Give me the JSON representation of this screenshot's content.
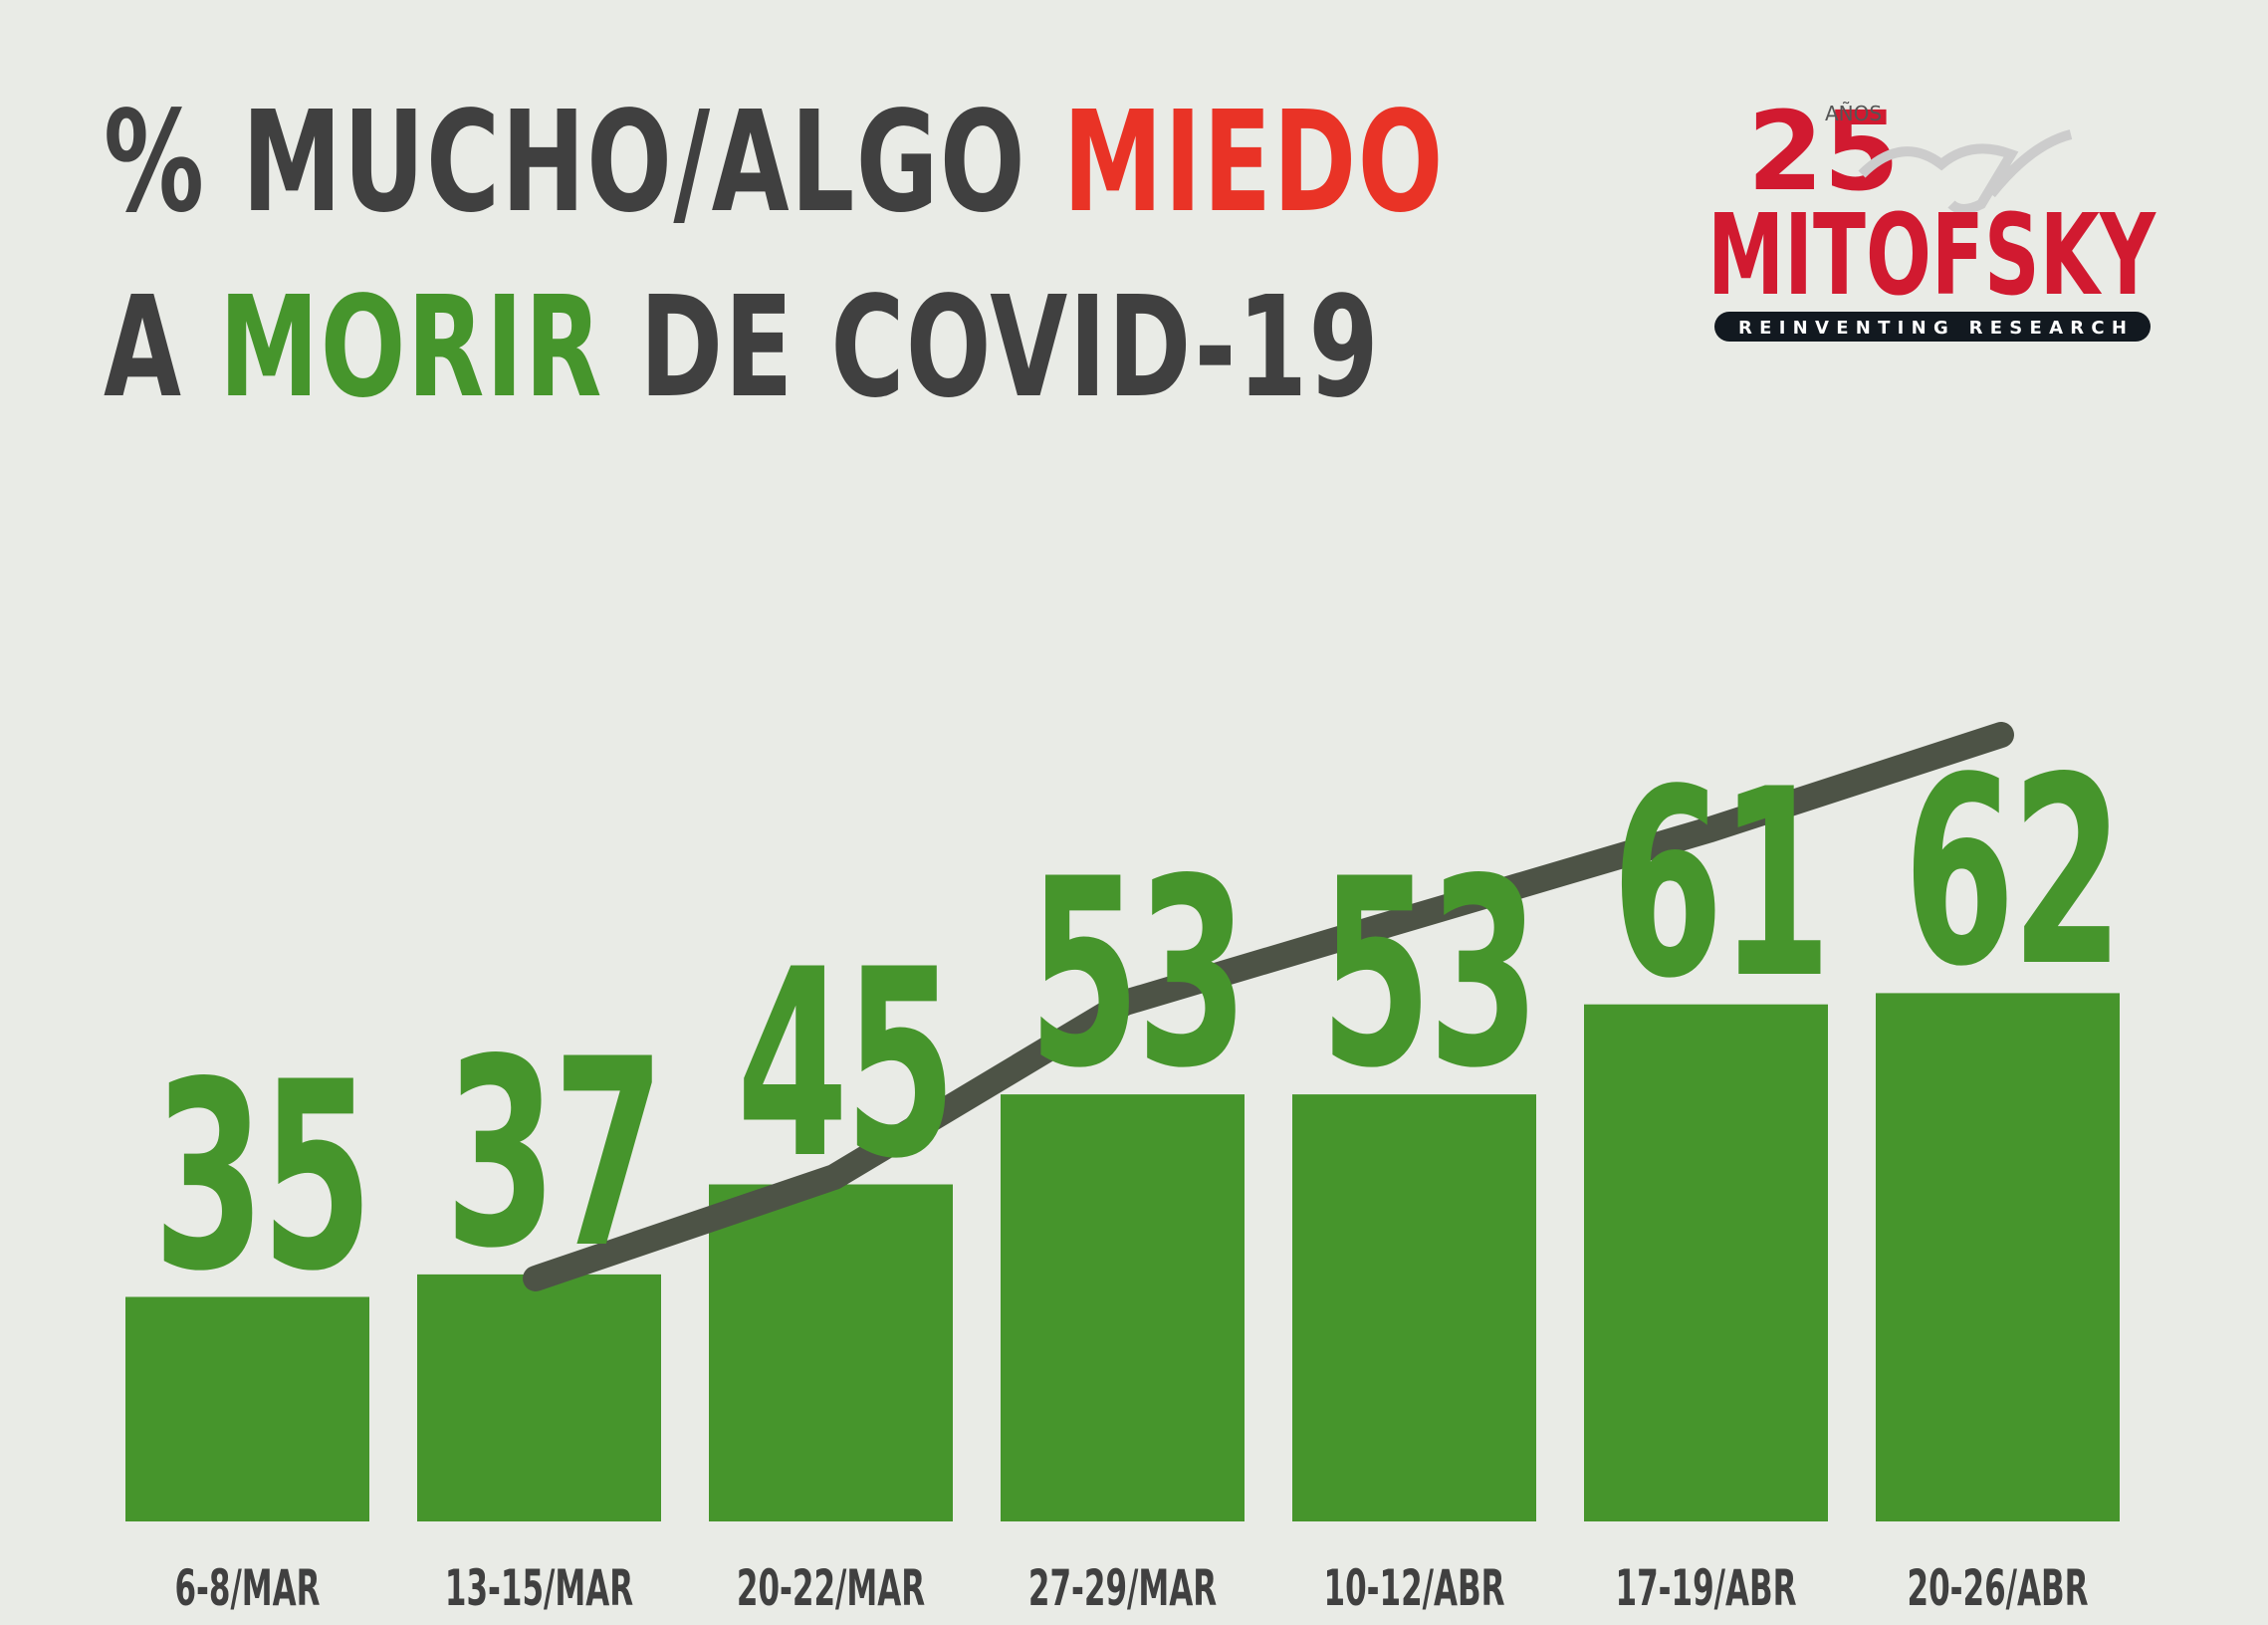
{
  "title": {
    "line1": [
      {
        "text": "% MUCHO/ALGO ",
        "color": "#404040"
      },
      {
        "text": "MIEDO",
        "color": "#e93326"
      }
    ],
    "line2": [
      {
        "text": "A ",
        "color": "#404040"
      },
      {
        "text": "MORIR",
        "color": "#46952c"
      },
      {
        "text": " DE COVID-19",
        "color": "#404040"
      }
    ]
  },
  "logo": {
    "number": "25",
    "anos": "AÑOS",
    "brand": "MITOFSKY",
    "tagline": "REINVENTING RESEARCH",
    "brand_color": "#d11a30"
  },
  "colors": {
    "background": "#e9ebe6",
    "bar": "#46952c",
    "trend_line": "#4d5346",
    "text_dark": "#404040"
  },
  "chart_data": {
    "type": "bar",
    "title": "% MUCHO/ALGO MIEDO A MORIR DE COVID-19",
    "xlabel": "",
    "ylabel": "",
    "categories": [
      "6-8/MAR",
      "13-15/MAR",
      "20-22/MAR",
      "27-29/MAR",
      "10-12/ABR",
      "17-19/ABR",
      "20-26/ABR"
    ],
    "values": [
      35,
      37,
      45,
      53,
      53,
      61,
      62
    ],
    "data_labels": [
      "35",
      "37",
      "45",
      "53",
      "53",
      "61",
      "62"
    ],
    "trend_line": {
      "description": "dark gray trend line drawn from the 2nd bar to the 7th bar",
      "start_category": "13-15/MAR",
      "end_category": "20-26/ABR"
    },
    "grid": false,
    "legend": null
  }
}
